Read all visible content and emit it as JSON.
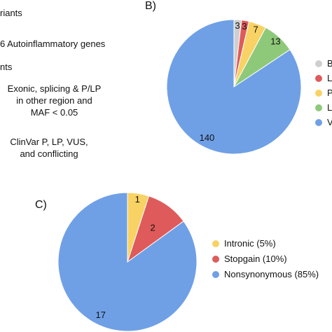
{
  "left_text": {
    "line1": "riants",
    "line2": "6 Autoinflammatory genes",
    "line3": "nts",
    "line4a": "Exonic, splicing & P/LP",
    "line4b": "in other region and",
    "line4c": "MAF < 0.05",
    "line5a": "ClinVar P, LP, VUS,",
    "line5b": "and conflicting"
  },
  "chart_data": [
    {
      "type": "pie",
      "panel_label": "B)",
      "slices": [
        {
          "label": "B",
          "value": 3,
          "color": "#cfcfcf"
        },
        {
          "label": "L",
          "value": 3,
          "color": "#df5b5b"
        },
        {
          "label": "P",
          "value": 7,
          "color": "#f8d264"
        },
        {
          "label": "L",
          "value": 13,
          "color": "#8ec97a"
        },
        {
          "label": "V",
          "value": 140,
          "color": "#6fa0e6"
        }
      ],
      "legend_position": "right"
    },
    {
      "type": "pie",
      "panel_label": "C)",
      "slices": [
        {
          "label": "Intronic (5%)",
          "value": 1,
          "color": "#f8d264"
        },
        {
          "label": "Stopgain (10%)",
          "value": 2,
          "color": "#df5b5b"
        },
        {
          "label": "Nonsynonymous (85%)",
          "value": 17,
          "color": "#6fa0e6"
        }
      ],
      "legend_position": "right"
    }
  ]
}
